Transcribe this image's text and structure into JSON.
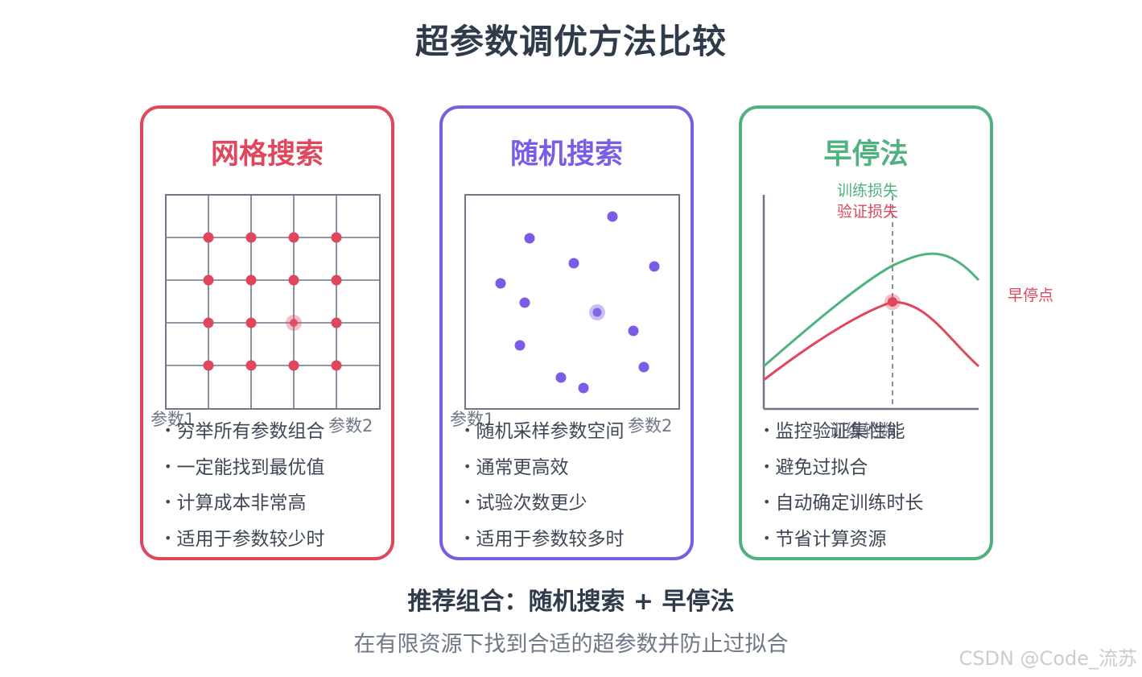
{
  "title": "超参数调优方法比较",
  "colors": {
    "grid": "#e0475d",
    "random": "#7b5ce6",
    "early": "#50b27f",
    "axis": "#6e7687",
    "text": "#3f4756"
  },
  "cards": {
    "grid": {
      "title": "网格搜索",
      "axis_x": "参数2",
      "axis_y": "参数1",
      "bullets": [
        "穷举所有参数组合",
        "一定能找到最优值",
        "计算成本非常高",
        "适用于参数较少时"
      ]
    },
    "random": {
      "title": "随机搜索",
      "axis_x": "参数2",
      "axis_y": "参数1",
      "bullets": [
        "随机采样参数空间",
        "通常更高效",
        "试验次数更少",
        "适用于参数较多时"
      ]
    },
    "early": {
      "title": "早停法",
      "legend_train": "训练损失",
      "legend_val": "验证损失",
      "axis_x": "训练轮数",
      "point_label": "早停点",
      "bullets": [
        "监控验证集性能",
        "避免过拟合",
        "自动确定训练时长",
        "节省计算资源"
      ]
    }
  },
  "recommendation": "推荐组合：随机搜索 + 早停法",
  "subtitle": "在有限资源下找到合适的超参数并防止过拟合",
  "watermark": "CSDN @Code_流苏"
}
